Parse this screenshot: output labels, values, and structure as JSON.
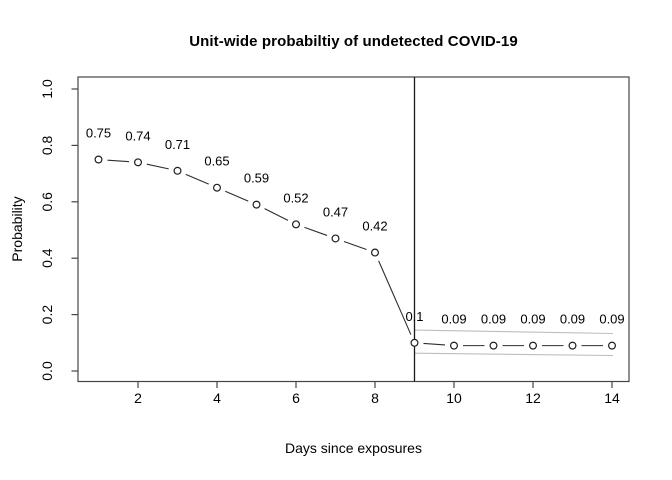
{
  "chart": {
    "title": "Unit-wide probabiltiy of undetected COVID-19",
    "xlabel": "Days since exposures",
    "ylabel": "Probability"
  },
  "chart_data": {
    "type": "line",
    "title": "Unit-wide probabiltiy of undetected COVID-19",
    "xlabel": "Days since exposures",
    "ylabel": "Probability",
    "x": [
      1,
      2,
      3,
      4,
      5,
      6,
      7,
      8,
      9,
      10,
      11,
      12,
      13,
      14
    ],
    "values": [
      0.75,
      0.74,
      0.71,
      0.65,
      0.59,
      0.52,
      0.47,
      0.42,
      0.1,
      0.09,
      0.09,
      0.09,
      0.09,
      0.09
    ],
    "point_labels": [
      "0.75",
      "0.74",
      "0.71",
      "0.65",
      "0.59",
      "0.52",
      "0.47",
      "0.42",
      "0.1",
      "0.09",
      "0.09",
      "0.09",
      "0.09",
      "0.09"
    ],
    "x_ticks": [
      2,
      4,
      6,
      8,
      10,
      12,
      14
    ],
    "y_ticks": [
      "0.0",
      "0.2",
      "0.4",
      "0.6",
      "0.8",
      "1.0"
    ],
    "xlim": [
      0.48,
      14.45
    ],
    "ylim": [
      0,
      1
    ],
    "grid": false,
    "legend": null,
    "marker": "open-circle",
    "line_style": "points-and-segments",
    "vline_x": 9,
    "ci_band": {
      "x_start": 9,
      "x_end": 14,
      "upper_start": 0.145,
      "upper_end": 0.133,
      "lower_start": 0.063,
      "lower_end": 0.055
    }
  },
  "colors": {
    "background": "#ffffff",
    "axis": "#454545",
    "data_line": "#2e2e2e",
    "marker_stroke": "#1f1f1f",
    "marker_fill": "#ffffff",
    "ci_line": "#bdbdbd",
    "vline": "#1a1a1a",
    "text": "#000000"
  }
}
